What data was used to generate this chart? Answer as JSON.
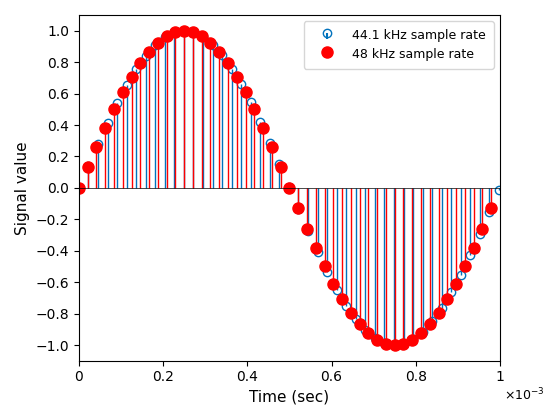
{
  "freq_signal": 1000,
  "fs1": 44100,
  "fs2": 48000,
  "duration": 0.001,
  "xlabel": "Time (sec)",
  "ylabel": "Signal value",
  "xlim": [
    0,
    0.001
  ],
  "ylim": [
    -1.1,
    1.1
  ],
  "legend1": "44.1 kHz sample rate",
  "legend2": "48 kHz sample rate",
  "color1": "#0072BD",
  "color2": "#FF0000",
  "markersize1": 6,
  "markersize2": 8,
  "xticks": [
    0,
    0.0002,
    0.0004,
    0.0006,
    0.0008,
    0.001
  ],
  "xtick_labels": [
    "0",
    "0.2",
    "0.4",
    "0.6",
    "0.8",
    "1"
  ],
  "yticks": [
    -1,
    -0.8,
    -0.6,
    -0.4,
    -0.2,
    0,
    0.2,
    0.4,
    0.6,
    0.8,
    1
  ]
}
